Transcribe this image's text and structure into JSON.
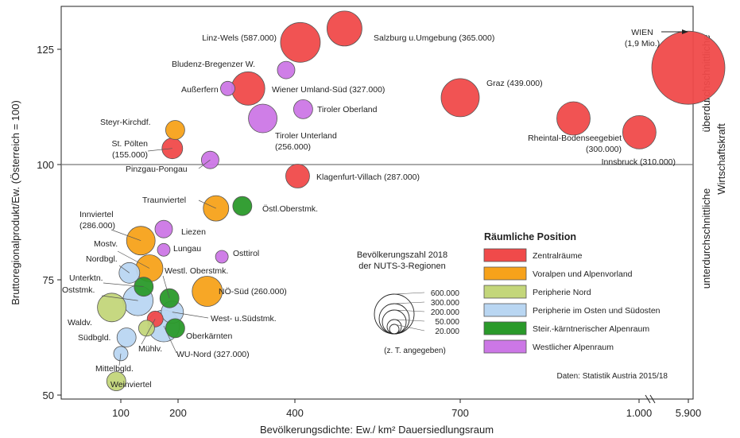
{
  "chart_data": {
    "type": "scatter",
    "xlabel": "Bevölkerungsdichte: Ew./ km² Dauersiedlungsraum",
    "ylabel": "Bruttoregionalprodukt/Ew. (Österreich = 100)",
    "right_label_top": "überdurchschnittliche",
    "right_label_mid": "Wirtschaftskraft",
    "right_label_bottom": "unterdurchschnittliche",
    "x_ticks": [
      "100",
      "200",
      "400",
      "700",
      "1.000",
      "5.900"
    ],
    "y_ticks": [
      50,
      75,
      100,
      125
    ],
    "ylim": [
      50,
      130
    ],
    "reference_line_y": 100,
    "source": "Daten: Statistik Austria 2015/18",
    "colors": {
      "zentral": "#f04a4a",
      "voralpen": "#f7a21a",
      "peripherie_nord": "#c3d67a",
      "peripherie_ost": "#b9d6f2",
      "steir_kaernt": "#2a9a2a",
      "westlich": "#cc77e6"
    },
    "legend": {
      "title": "Räumliche Position",
      "items": [
        {
          "key": "zentral",
          "label": "Zentralräume"
        },
        {
          "key": "voralpen",
          "label": "Voralpen und Alpenvorland"
        },
        {
          "key": "peripherie_nord",
          "label": "Peripherie Nord"
        },
        {
          "key": "peripherie_ost",
          "label": "Peripherie im Osten und Südosten"
        },
        {
          "key": "steir_kaernt",
          "label": "Steir.-kärntnerischer Alpenraum"
        },
        {
          "key": "westlich",
          "label": "Westlicher Alpenraum"
        }
      ]
    },
    "size_legend": {
      "title_line1": "Bevölkerungszahl 2018",
      "title_line2": "der NUTS-3-Regionen",
      "values": [
        "600.000",
        "300.000",
        "200.000",
        "50.000",
        "20.000"
      ],
      "note": "(z. T. angegeben)"
    },
    "points": [
      {
        "name": "WIEN (1,9 Mio.)",
        "x": 5900,
        "y": 121,
        "cat": "zentral"
      },
      {
        "name": "Linz-Wels (587.000)",
        "x": 410,
        "y": 126.5,
        "cat": "zentral"
      },
      {
        "name": "Salzburg u.Umgebung (365.000)",
        "x": 490,
        "y": 129.5,
        "cat": "zentral"
      },
      {
        "name": "Wiener Umland-Süd (327.000)",
        "x": 320,
        "y": 116.5,
        "cat": "zentral"
      },
      {
        "name": "Graz (439.000)",
        "x": 700,
        "y": 114.5,
        "cat": "zentral"
      },
      {
        "name": "Rheintal-Bodenseegebiet (300.000)",
        "x": 890,
        "y": 110,
        "cat": "zentral"
      },
      {
        "name": "Innsbruck (310.000)",
        "x": 1030,
        "y": 107,
        "cat": "zentral"
      },
      {
        "name": "St. Pölten (155.000)",
        "x": 190,
        "y": 103.5,
        "cat": "zentral"
      },
      {
        "name": "Klagenfurt-Villach (287.000)",
        "x": 405,
        "y": 97.5,
        "cat": "zentral"
      },
      {
        "name": "Mühlv.",
        "x": 160,
        "y": 66.5,
        "cat": "zentral"
      },
      {
        "name": "Steyr-Kirchdf.",
        "x": 195,
        "y": 107.5,
        "cat": "voralpen"
      },
      {
        "name": "Traunviertel",
        "x": 265,
        "y": 90.5,
        "cat": "voralpen"
      },
      {
        "name": "Innviertel (286.000)",
        "x": 135,
        "y": 83.5,
        "cat": "voralpen"
      },
      {
        "name": "Mostv.",
        "x": 150,
        "y": 77.5,
        "cat": "voralpen"
      },
      {
        "name": "NÖ-Süd (260.000)",
        "x": 250,
        "y": 72.5,
        "cat": "voralpen"
      },
      {
        "name": "Waldv.",
        "x": 90,
        "y": 69,
        "cat": "peripherie_nord"
      },
      {
        "name": "Weinviertel",
        "x": 95,
        "y": 53,
        "cat": "peripherie_nord"
      },
      {
        "name": "Mühlv.",
        "x": 145,
        "y": 64.5,
        "cat": "peripherie_nord"
      },
      {
        "name": "Nordbgl.",
        "x": 115,
        "y": 76.5,
        "cat": "peripherie_ost"
      },
      {
        "name": "Oststmk.",
        "x": 130,
        "y": 70.5,
        "cat": "peripherie_ost"
      },
      {
        "name": "West- u.Südstmk.",
        "x": 190,
        "y": 68,
        "cat": "peripherie_ost"
      },
      {
        "name": "Südbgld.",
        "x": 110,
        "y": 62.5,
        "cat": "peripherie_ost"
      },
      {
        "name": "Mittelbgld.",
        "x": 100,
        "y": 59,
        "cat": "peripherie_ost"
      },
      {
        "name": "WU-Nord (327.000)",
        "x": 175,
        "y": 65,
        "cat": "peripherie_ost"
      },
      {
        "name": "Östl.Oberstmk.",
        "x": 310,
        "y": 91,
        "cat": "steir_kaernt"
      },
      {
        "name": "Westl. Oberstmk.",
        "x": 185,
        "y": 71,
        "cat": "steir_kaernt"
      },
      {
        "name": "Unterktn.",
        "x": 140,
        "y": 73.5,
        "cat": "steir_kaernt"
      },
      {
        "name": "Oberkärnten",
        "x": 195,
        "y": 64.5,
        "cat": "steir_kaernt"
      },
      {
        "name": "Bludenz-Bregenzer W.",
        "x": 385,
        "y": 120.5,
        "cat": "westlich"
      },
      {
        "name": "Außerfern",
        "x": 285,
        "y": 116.5,
        "cat": "westlich"
      },
      {
        "name": "Tiroler Oberland",
        "x": 415,
        "y": 112,
        "cat": "westlich"
      },
      {
        "name": "Tiroler Unterland (256.000)",
        "x": 345,
        "y": 110,
        "cat": "westlich"
      },
      {
        "name": "Pinzgau-Pongau",
        "x": 255,
        "y": 101,
        "cat": "westlich"
      },
      {
        "name": "Liezen",
        "x": 175,
        "y": 86,
        "cat": "westlich"
      },
      {
        "name": "Lungau",
        "x": 175,
        "y": 81.5,
        "cat": "westlich"
      },
      {
        "name": "Osttirol",
        "x": 275,
        "y": 80,
        "cat": "westlich"
      }
    ]
  }
}
